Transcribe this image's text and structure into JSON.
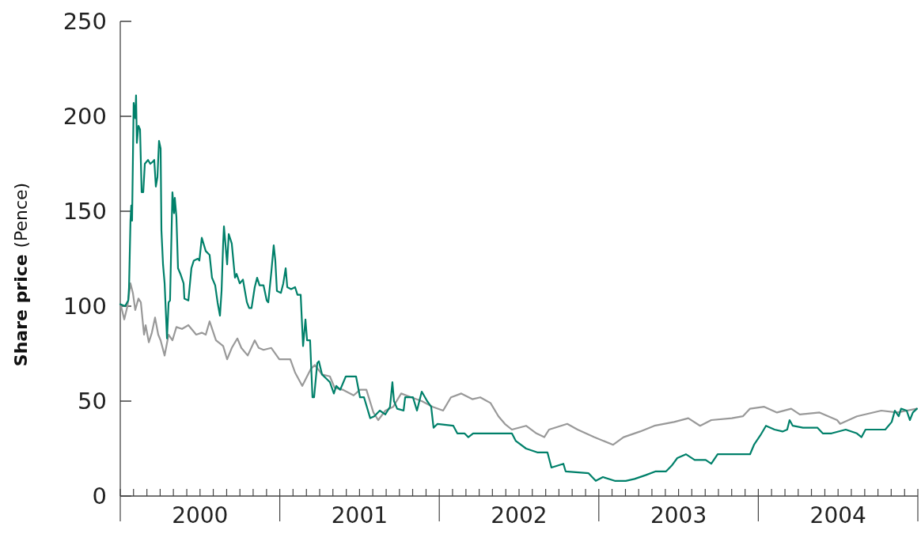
{
  "chart_data": {
    "type": "line",
    "ylabel": "Share price (Pence)",
    "xlim": [
      2000,
      2005
    ],
    "ylim": [
      0,
      250
    ],
    "yticks": [
      0,
      50,
      100,
      150,
      200,
      250
    ],
    "xticks": [
      {
        "value": 2000,
        "label": null
      },
      {
        "value": 2000.083,
        "label": null
      },
      {
        "value": 2000.167,
        "label": null
      },
      {
        "value": 2000.25,
        "label": null
      },
      {
        "value": 2000.333,
        "label": null
      },
      {
        "value": 2000.417,
        "label": null
      },
      {
        "value": 2000.5,
        "label": null
      },
      {
        "value": 2000.583,
        "label": null
      },
      {
        "value": 2000.667,
        "label": null
      },
      {
        "value": 2000.75,
        "label": null
      },
      {
        "value": 2000.833,
        "label": null
      },
      {
        "value": 2000.917,
        "label": null
      },
      {
        "value": 2001,
        "label": null
      },
      {
        "value": 2001.083,
        "label": null
      },
      {
        "value": 2001.167,
        "label": null
      },
      {
        "value": 2001.25,
        "label": null
      },
      {
        "value": 2001.333,
        "label": null
      },
      {
        "value": 2001.417,
        "label": null
      },
      {
        "value": 2001.5,
        "label": null
      },
      {
        "value": 2001.583,
        "label": null
      },
      {
        "value": 2001.667,
        "label": null
      },
      {
        "value": 2001.75,
        "label": null
      },
      {
        "value": 2001.833,
        "label": null
      },
      {
        "value": 2001.917,
        "label": null
      },
      {
        "value": 2002,
        "label": null
      },
      {
        "value": 2002.083,
        "label": null
      },
      {
        "value": 2002.167,
        "label": null
      },
      {
        "value": 2002.25,
        "label": null
      },
      {
        "value": 2002.333,
        "label": null
      },
      {
        "value": 2002.417,
        "label": null
      },
      {
        "value": 2002.5,
        "label": null
      },
      {
        "value": 2002.583,
        "label": null
      },
      {
        "value": 2002.667,
        "label": null
      },
      {
        "value": 2002.75,
        "label": null
      },
      {
        "value": 2002.833,
        "label": null
      },
      {
        "value": 2002.917,
        "label": null
      },
      {
        "value": 2003,
        "label": null
      },
      {
        "value": 2003.083,
        "label": null
      },
      {
        "value": 2003.167,
        "label": null
      },
      {
        "value": 2003.25,
        "label": null
      },
      {
        "value": 2003.333,
        "label": null
      },
      {
        "value": 2003.417,
        "label": null
      },
      {
        "value": 2003.5,
        "label": null
      },
      {
        "value": 2003.583,
        "label": null
      },
      {
        "value": 2003.667,
        "label": null
      },
      {
        "value": 2003.75,
        "label": null
      },
      {
        "value": 2003.833,
        "label": null
      },
      {
        "value": 2003.917,
        "label": null
      },
      {
        "value": 2004,
        "label": null
      },
      {
        "value": 2004.083,
        "label": null
      },
      {
        "value": 2004.167,
        "label": null
      },
      {
        "value": 2004.25,
        "label": null
      },
      {
        "value": 2004.333,
        "label": null
      },
      {
        "value": 2004.417,
        "label": null
      },
      {
        "value": 2004.5,
        "label": null
      },
      {
        "value": 2004.583,
        "label": null
      },
      {
        "value": 2004.667,
        "label": null
      },
      {
        "value": 2004.75,
        "label": null
      },
      {
        "value": 2004.833,
        "label": null
      },
      {
        "value": 2004.917,
        "label": null
      },
      {
        "value": 2005,
        "label": null
      },
      {
        "value": 2000.5,
        "label": "2000"
      },
      {
        "value": 2001.5,
        "label": "2001"
      },
      {
        "value": 2002.5,
        "label": "2002"
      },
      {
        "value": 2003.5,
        "label": "2003"
      },
      {
        "value": 2004.5,
        "label": "2004"
      }
    ],
    "marker": "none",
    "line_style": "solid",
    "series": [
      {
        "color": "#999999",
        "x": [
          2000.005,
          2000.025,
          2000.045,
          2000.064,
          2000.079,
          2000.094,
          2000.114,
          2000.129,
          2000.149,
          2000.159,
          2000.179,
          2000.198,
          2000.218,
          2000.238,
          2000.253,
          2000.278,
          2000.303,
          2000.327,
          2000.352,
          2000.387,
          2000.427,
          2000.476,
          2000.511,
          2000.536,
          2000.56,
          2000.6,
          2000.645,
          2000.67,
          2000.699,
          2000.734,
          2000.759,
          2000.799,
          2000.843,
          2000.868,
          2000.898,
          2000.947,
          2000.997,
          2001.066,
          2001.096,
          2001.141,
          2001.171,
          2001.195,
          2001.22,
          2001.265,
          2001.314,
          2001.344,
          2001.394,
          2001.463,
          2001.503,
          2001.543,
          2001.587,
          2001.617,
          2001.662,
          2001.711,
          2001.761,
          2001.825,
          2001.89,
          2001.959,
          2002.024,
          2002.073,
          2002.138,
          2002.207,
          2002.257,
          2002.321,
          2002.371,
          2002.411,
          2002.455,
          2002.544,
          2002.609,
          2002.658,
          2002.688,
          2002.802,
          2002.867,
          2002.971,
          2003.09,
          2003.155,
          2003.259,
          2003.348,
          2003.472,
          2003.561,
          2003.635,
          2003.705,
          2003.834,
          2003.903,
          2003.948,
          2004.037,
          2004.117,
          2004.206,
          2004.26,
          2004.384,
          2004.494,
          2004.513,
          2004.618,
          2004.771,
          2004.87,
          2004.994
        ],
        "values": [
          100,
          93,
          100,
          112,
          107,
          98,
          104,
          102,
          85,
          90,
          81,
          86,
          94,
          85,
          82,
          74,
          85,
          82,
          89,
          88,
          90,
          85,
          86,
          85,
          92,
          82,
          79,
          72,
          78,
          83,
          78,
          74,
          82,
          78,
          77,
          78,
          72,
          72,
          65,
          58,
          63,
          67,
          69,
          64,
          63,
          57,
          56,
          53,
          56,
          56,
          44,
          40,
          45,
          47,
          54,
          52,
          50,
          47,
          45,
          52,
          54,
          51,
          52,
          49,
          42,
          38,
          35,
          37,
          33,
          31,
          35,
          38,
          35,
          31,
          27,
          31,
          34,
          37,
          39,
          41,
          37,
          40,
          41,
          42,
          46,
          47,
          44,
          46,
          43,
          44,
          40,
          38,
          42,
          45,
          44,
          46
        ]
      },
      {
        "color": "#00806a",
        "x": [
          2000,
          2000.03,
          2000.05,
          2000.055,
          2000.064,
          2000.069,
          2000.074,
          2000.084,
          2000.094,
          2000.099,
          2000.104,
          2000.114,
          2000.124,
          2000.134,
          2000.144,
          2000.154,
          2000.174,
          2000.188,
          2000.203,
          2000.213,
          2000.223,
          2000.233,
          2000.243,
          2000.253,
          2000.258,
          2000.268,
          2000.278,
          2000.293,
          2000.303,
          2000.312,
          2000.327,
          2000.337,
          2000.342,
          2000.352,
          2000.362,
          2000.377,
          2000.397,
          2000.402,
          2000.427,
          2000.446,
          2000.461,
          2000.486,
          2000.496,
          2000.511,
          2000.536,
          2000.56,
          2000.575,
          2000.595,
          2000.61,
          2000.625,
          2000.635,
          2000.645,
          2000.65,
          2000.67,
          2000.68,
          2000.699,
          2000.719,
          2000.729,
          2000.749,
          2000.769,
          2000.794,
          2000.808,
          2000.823,
          2000.843,
          2000.858,
          2000.873,
          2000.898,
          2000.918,
          2000.928,
          2000.947,
          2000.962,
          2000.972,
          2000.982,
          2001.007,
          2001.022,
          2001.037,
          2001.047,
          2001.071,
          2001.096,
          2001.111,
          2001.131,
          2001.146,
          2001.161,
          2001.171,
          2001.19,
          2001.205,
          2001.215,
          2001.235,
          2001.245,
          2001.265,
          2001.29,
          2001.314,
          2001.339,
          2001.354,
          2001.379,
          2001.414,
          2001.478,
          2001.503,
          2001.528,
          2001.567,
          2001.592,
          2001.627,
          2001.662,
          2001.691,
          2001.706,
          2001.716,
          2001.736,
          2001.776,
          2001.786,
          2001.835,
          2001.86,
          2001.89,
          2001.924,
          2001.949,
          2001.964,
          2001.989,
          2002.088,
          2002.113,
          2002.158,
          2002.182,
          2002.212,
          2002.336,
          2002.455,
          2002.48,
          2002.544,
          2002.614,
          2002.678,
          2002.703,
          2002.778,
          2002.792,
          2002.936,
          2002.981,
          2003.026,
          2003.1,
          2003.169,
          2003.224,
          2003.293,
          2003.357,
          2003.422,
          2003.457,
          2003.492,
          2003.546,
          2003.601,
          2003.67,
          2003.705,
          2003.745,
          2003.794,
          2003.948,
          2003.973,
          2004.013,
          2004.048,
          2004.102,
          2004.152,
          2004.181,
          2004.196,
          2004.216,
          2004.28,
          2004.37,
          2004.404,
          2004.459,
          2004.548,
          2004.618,
          2004.647,
          2004.672,
          2004.796,
          2004.836,
          2004.856,
          2004.88,
          2004.895,
          2004.93,
          2004.95,
          2004.969,
          2004.994
        ],
        "values": [
          101,
          100,
          103,
          110,
          145,
          153,
          145,
          207,
          199,
          211,
          186,
          195,
          193,
          160,
          160,
          175,
          177,
          175,
          176,
          177,
          163,
          168,
          187,
          183,
          140,
          122,
          112,
          83,
          102,
          103,
          160,
          149,
          157,
          147,
          120,
          117,
          112,
          104,
          103,
          120,
          124,
          125,
          124,
          136,
          129,
          127,
          115,
          111,
          102,
          95,
          108,
          133,
          142,
          122,
          138,
          133,
          115,
          117,
          112,
          114,
          102,
          99,
          99,
          110,
          115,
          111,
          111,
          103,
          102,
          118,
          132,
          124,
          108,
          107,
          112,
          120,
          110,
          109,
          110,
          106,
          106,
          79,
          93,
          82,
          82,
          52,
          52,
          70,
          71,
          64,
          62,
          60,
          54,
          58,
          56,
          63,
          63,
          52,
          52,
          41,
          42,
          45,
          43,
          47,
          60,
          50,
          46,
          45,
          52,
          52,
          45,
          55,
          50,
          47,
          36,
          38,
          37,
          33,
          33,
          31,
          33,
          33,
          33,
          29,
          25,
          23,
          23,
          15,
          17,
          13,
          12,
          8,
          10,
          8,
          8,
          9,
          11,
          13,
          13,
          16,
          20,
          22,
          19,
          19,
          17,
          22,
          22,
          22,
          27,
          32,
          37,
          35,
          34,
          35,
          40,
          37,
          36,
          36,
          33,
          33,
          35,
          33,
          31,
          35,
          35,
          39,
          45,
          42,
          46,
          45,
          40,
          44,
          46
        ]
      }
    ]
  }
}
